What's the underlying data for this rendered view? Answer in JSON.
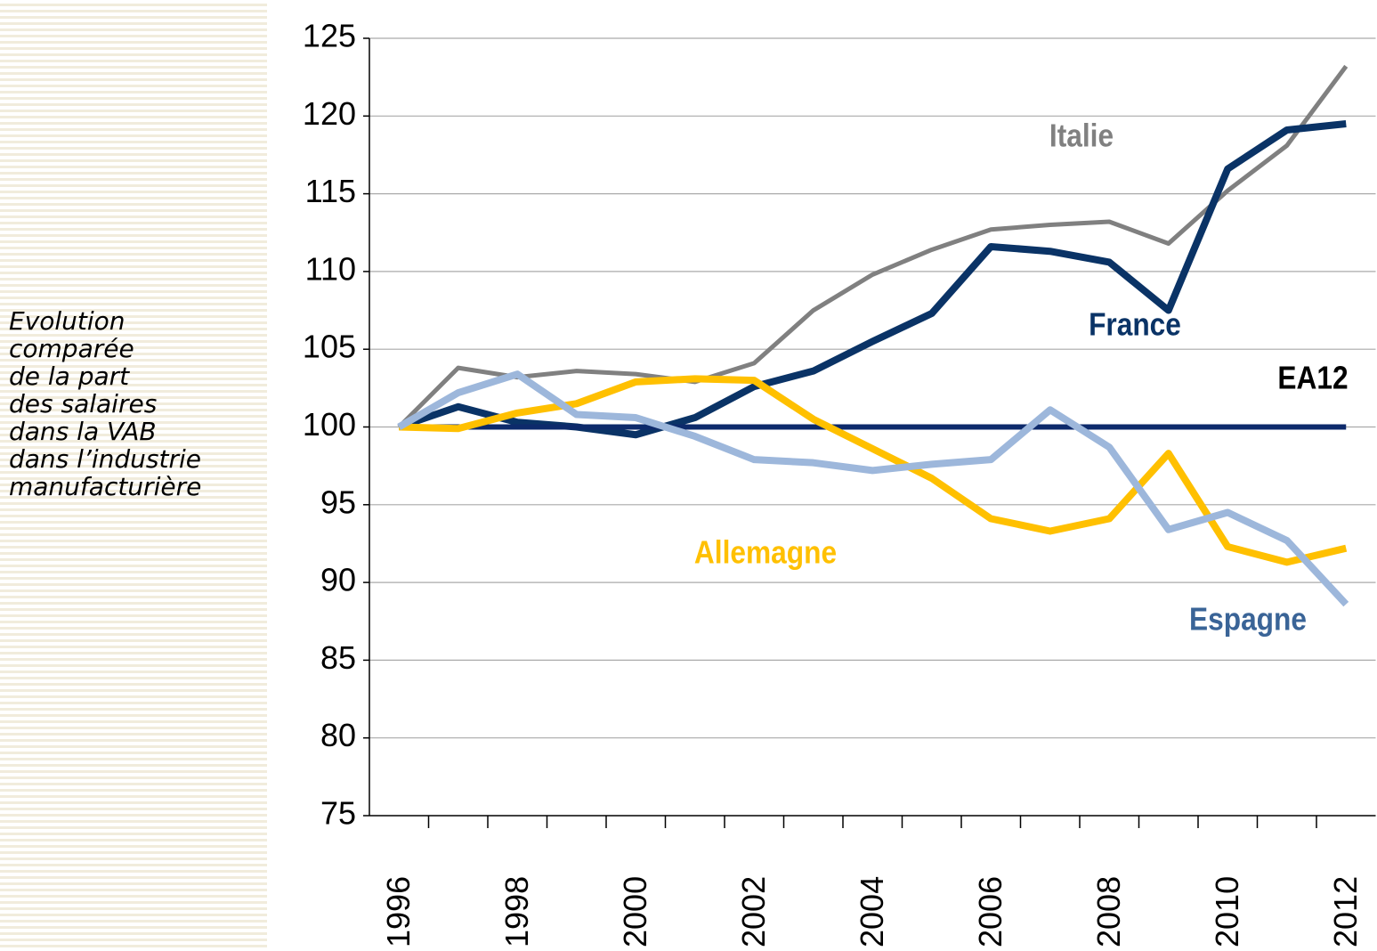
{
  "chart_data": {
    "type": "line",
    "subtitle": [
      "Evolution",
      "comparée",
      "de la part",
      "des salaires",
      "dans la VAB",
      "dans l’industrie",
      "manufacturière"
    ],
    "categories": [
      "1996",
      null,
      "1998",
      null,
      "2000",
      null,
      "2002",
      null,
      "2004",
      null,
      "2006",
      null,
      "2008",
      null,
      "2010",
      null,
      "2012"
    ],
    "series": [
      {
        "name": "Italie",
        "color": "#808080",
        "label_color": "#808080",
        "values": [
          100,
          103.8,
          103.2,
          103.6,
          103.4,
          102.9,
          104.1,
          107.5,
          109.8,
          111.4,
          112.7,
          113.0,
          113.2,
          111.8,
          115.2,
          118.1,
          123.2
        ]
      },
      {
        "name": "France",
        "color": "#0a3366",
        "label_color": "#0a3366",
        "values": [
          100,
          101.3,
          100.3,
          100.0,
          99.5,
          100.6,
          102.6,
          103.6,
          105.5,
          107.3,
          111.6,
          111.3,
          110.6,
          107.5,
          116.6,
          119.1,
          119.5
        ]
      },
      {
        "name": "EA12",
        "color": "#0d2a6b",
        "label_color": "#000000",
        "values": [
          100,
          100,
          100,
          100,
          100,
          100,
          100,
          100,
          100,
          100,
          100,
          100,
          100,
          100,
          100,
          100,
          100
        ]
      },
      {
        "name": "Allemagne",
        "color": "#ffc000",
        "label_color": "#ffc000",
        "values": [
          100,
          99.9,
          100.9,
          101.5,
          102.9,
          103.1,
          103.0,
          100.5,
          98.6,
          96.7,
          94.1,
          93.3,
          94.1,
          98.3,
          92.3,
          91.3,
          92.2
        ]
      },
      {
        "name": "Espagne",
        "color": "#9db7db",
        "label_color": "#3a6497",
        "values": [
          100,
          102.2,
          103.4,
          100.8,
          100.6,
          99.4,
          97.9,
          97.7,
          97.2,
          97.6,
          97.9,
          101.1,
          98.7,
          93.4,
          94.5,
          92.7,
          88.6
        ]
      }
    ],
    "ylim": [
      75,
      125
    ],
    "yticks": [
      75,
      80,
      85,
      90,
      95,
      100,
      105,
      110,
      115,
      120,
      125
    ],
    "grid": true
  }
}
